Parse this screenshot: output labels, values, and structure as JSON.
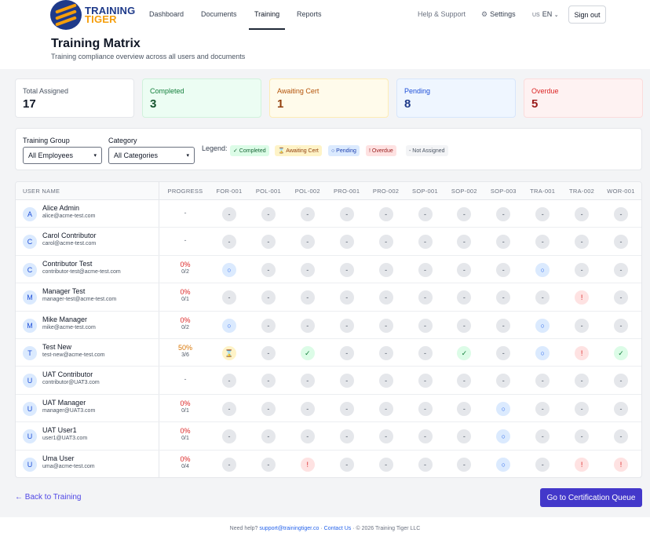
{
  "brand": {
    "line1": "TRAINING",
    "line2": "TIGER"
  },
  "nav": {
    "items": [
      "Dashboard",
      "Documents",
      "Training",
      "Reports"
    ],
    "active": "Training",
    "help": "Help & Support",
    "settings": "Settings",
    "lang_flag": "US",
    "lang": "EN",
    "signout": "Sign out"
  },
  "page": {
    "title": "Training Matrix",
    "subtitle": "Training compliance overview across all users and documents"
  },
  "stats": [
    {
      "label": "Total Assigned",
      "value": "17",
      "bg": "#ffffff",
      "border": "#e5e7eb",
      "label_color": "#4b5563",
      "value_color": "#111827"
    },
    {
      "label": "Completed",
      "value": "3",
      "bg": "#ecfdf3",
      "border": "#d1f2dc",
      "label_color": "#15803d",
      "value_color": "#14532d"
    },
    {
      "label": "Awaiting Cert",
      "value": "1",
      "bg": "#fffbeb",
      "border": "#fdecb6",
      "label_color": "#b45309",
      "value_color": "#92400e"
    },
    {
      "label": "Pending",
      "value": "8",
      "bg": "#eff6ff",
      "border": "#d7e6fb",
      "label_color": "#1d4ed8",
      "value_color": "#1e3a8a"
    },
    {
      "label": "Overdue",
      "value": "5",
      "bg": "#fef2f2",
      "border": "#fbdcdc",
      "label_color": "#dc2626",
      "value_color": "#991b1b"
    }
  ],
  "filters": {
    "group_label": "Training Group",
    "group_value": "All Employees",
    "category_label": "Category",
    "category_value": "All Categories",
    "legend_label": "Legend:",
    "legend": [
      {
        "text": "✓ Completed",
        "bg": "#dcfce7",
        "color": "#166534"
      },
      {
        "text": "⌛ Awaiting Cert",
        "bg": "#fef3c7",
        "color": "#92400e"
      },
      {
        "text": "○ Pending",
        "bg": "#dbeafe",
        "color": "#1e40af"
      },
      {
        "text": "! Overdue",
        "bg": "#fee2e2",
        "color": "#991b1b"
      },
      {
        "text": "- Not Assigned",
        "bg": "#f3f4f6",
        "color": "#4b5563"
      }
    ]
  },
  "matrix": {
    "col_user": "USER NAME",
    "col_progress": "PROGRESS",
    "docs": [
      "FOR-001",
      "POL-001",
      "POL-002",
      "PRO-001",
      "PRO-002",
      "SOP-001",
      "SOP-002",
      "SOP-003",
      "TRA-001",
      "TRA-002",
      "WOR-001"
    ],
    "glyphs": {
      "na": "-",
      "pending": "○",
      "completed": "✓",
      "overdue": "!",
      "awaiting": "⌛"
    },
    "rows": [
      {
        "initial": "A",
        "name": "Alice Admin",
        "email": "alice@acme-test.com",
        "pct": "",
        "frac": "",
        "dash": "-",
        "cells": [
          "na",
          "na",
          "na",
          "na",
          "na",
          "na",
          "na",
          "na",
          "na",
          "na",
          "na"
        ]
      },
      {
        "initial": "C",
        "name": "Carol Contributor",
        "email": "carol@acme-test.com",
        "pct": "",
        "frac": "",
        "dash": "-",
        "cells": [
          "na",
          "na",
          "na",
          "na",
          "na",
          "na",
          "na",
          "na",
          "na",
          "na",
          "na"
        ]
      },
      {
        "initial": "C",
        "name": "Contributor Test",
        "email": "contributor-test@acme-test.com",
        "pct": "0%",
        "frac": "0/2",
        "dash": "",
        "cells": [
          "pending",
          "na",
          "na",
          "na",
          "na",
          "na",
          "na",
          "na",
          "pending",
          "na",
          "na"
        ]
      },
      {
        "initial": "M",
        "name": "Manager Test",
        "email": "manager-test@acme-test.com",
        "pct": "0%",
        "frac": "0/1",
        "dash": "",
        "cells": [
          "na",
          "na",
          "na",
          "na",
          "na",
          "na",
          "na",
          "na",
          "na",
          "overdue",
          "na"
        ]
      },
      {
        "initial": "M",
        "name": "Mike Manager",
        "email": "mike@acme-test.com",
        "pct": "0%",
        "frac": "0/2",
        "dash": "",
        "cells": [
          "pending",
          "na",
          "na",
          "na",
          "na",
          "na",
          "na",
          "na",
          "pending",
          "na",
          "na"
        ]
      },
      {
        "initial": "T",
        "name": "Test New",
        "email": "test-new@acme-test.com",
        "pct": "50%",
        "frac": "3/6",
        "dash": "",
        "pct_color": "#d97706",
        "cells": [
          "awaiting",
          "na",
          "completed",
          "na",
          "na",
          "na",
          "completed",
          "na",
          "pending",
          "overdue",
          "completed"
        ]
      },
      {
        "initial": "U",
        "name": "UAT Contributor",
        "email": "contributor@UAT3.com",
        "pct": "",
        "frac": "",
        "dash": "-",
        "cells": [
          "na",
          "na",
          "na",
          "na",
          "na",
          "na",
          "na",
          "na",
          "na",
          "na",
          "na"
        ]
      },
      {
        "initial": "U",
        "name": "UAT Manager",
        "email": "manager@UAT3.com",
        "pct": "0%",
        "frac": "0/1",
        "dash": "",
        "cells": [
          "na",
          "na",
          "na",
          "na",
          "na",
          "na",
          "na",
          "pending",
          "na",
          "na",
          "na"
        ]
      },
      {
        "initial": "U",
        "name": "UAT User1",
        "email": "user1@UAT3.com",
        "pct": "0%",
        "frac": "0/1",
        "dash": "",
        "cells": [
          "na",
          "na",
          "na",
          "na",
          "na",
          "na",
          "na",
          "pending",
          "na",
          "na",
          "na"
        ]
      },
      {
        "initial": "U",
        "name": "Uma User",
        "email": "uma@acme-test.com",
        "pct": "0%",
        "frac": "0/4",
        "dash": "",
        "cells": [
          "na",
          "na",
          "overdue",
          "na",
          "na",
          "na",
          "na",
          "pending",
          "na",
          "overdue",
          "overdue"
        ]
      }
    ]
  },
  "actions": {
    "back": "← Back to Training",
    "go": "Go to Certification Queue"
  },
  "footer": {
    "help": "Need help?",
    "email": "support@trainingtiger.co",
    "sep1": "·",
    "contact": "Contact Us",
    "sep2": "·",
    "copyright": "© 2026 Training Tiger LLC"
  }
}
